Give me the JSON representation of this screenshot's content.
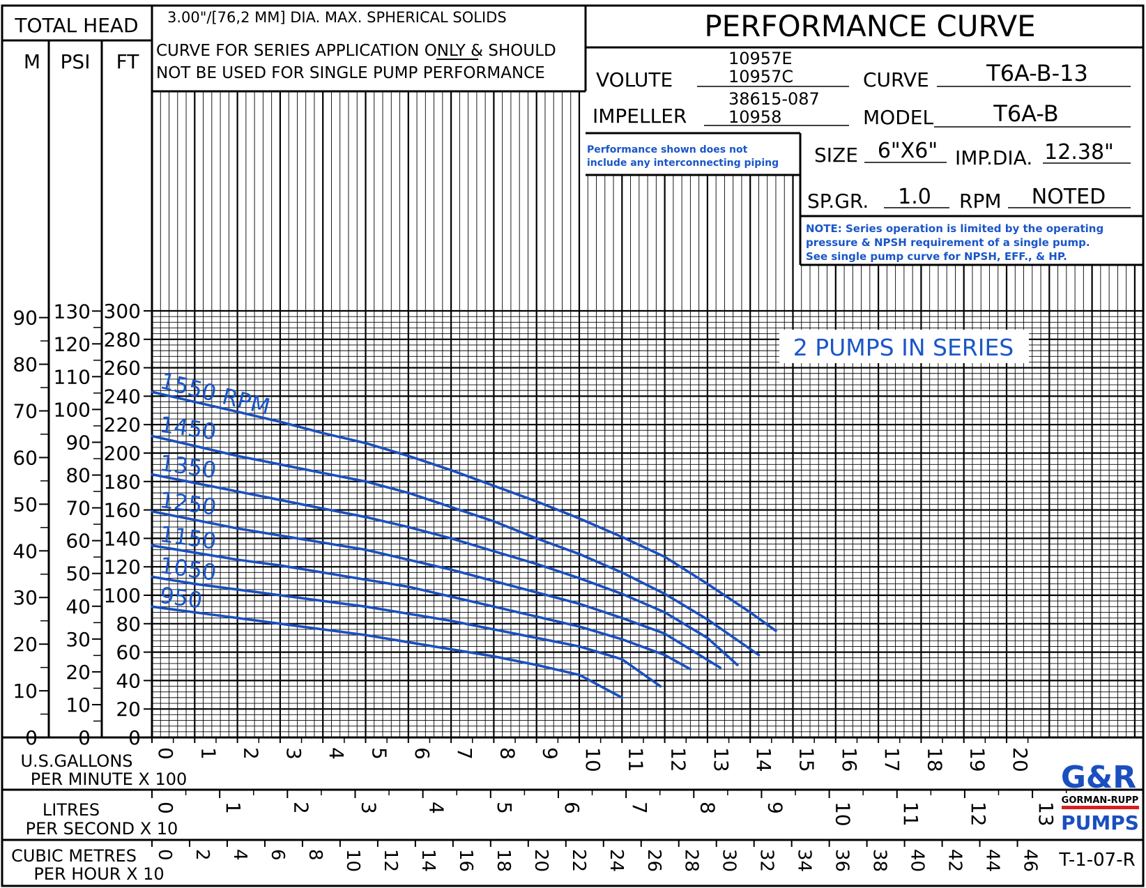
{
  "header": {
    "total_head": "TOTAL HEAD",
    "unit_m": "M",
    "unit_psi": "PSI",
    "unit_ft": "FT",
    "solids": "3.00\"/[76,2 MM] DIA. MAX. SPHERICAL SOLIDS",
    "note_line1": "CURVE FOR SERIES APPLICATION ONLY & SHOULD",
    "note_line2": "NOT BE USED FOR SINGLE PUMP PERFORMANCE",
    "title": "PERFORMANCE CURVE"
  },
  "specs": {
    "volute_label": "VOLUTE",
    "volute_1": "10957E",
    "volute_2": "10957C",
    "impeller_label": "IMPELLER",
    "impeller_1": "38615-087",
    "impeller_2": "10958",
    "curve_label": "CURVE",
    "curve_value": "T6A-B-13",
    "model_label": "MODEL",
    "model_value": "T6A-B",
    "size_label": "SIZE",
    "size_value": "6\"X6\"",
    "impdia_label": "IMP.DIA.",
    "impdia_value": "12.38\"",
    "spgr_label": "SP.GR.",
    "spgr_value": "1.0",
    "rpm_label": "RPM",
    "rpm_value": "NOTED"
  },
  "notes": {
    "piping_1": "Performance shown does not",
    "piping_2": "include any interconnecting piping",
    "series_1": "NOTE: Series operation is limited by the operating",
    "series_2": "pressure & NPSH requirement of a single pump.",
    "series_3": "See single pump curve for NPSH, EFF., & HP.",
    "series_label": "2 PUMPS IN SERIES"
  },
  "axis_labels": {
    "gpm_1": "U.S.GALLONS",
    "gpm_2": "PER MINUTE X 100",
    "lps_1": "LITRES",
    "lps_2": "PER SECOND X 10",
    "cmh_1": "CUBIC METRES",
    "cmh_2": "PER HOUR X 10"
  },
  "footer": {
    "drawing_no": "T-1-07-R",
    "logo_mark": "G&R",
    "logo_company": "GORMAN-RUPP",
    "logo_product": "PUMPS"
  },
  "chart_data": {
    "type": "line",
    "title": "PERFORMANCE CURVE",
    "x_axis": {
      "label": "U.S.GALLONS PER MINUTE X 100",
      "range": [
        0,
        23
      ],
      "ticks": [
        0,
        1,
        2,
        3,
        4,
        5,
        6,
        7,
        8,
        9,
        10,
        11,
        12,
        13,
        14,
        15,
        16,
        17,
        18,
        19,
        20
      ]
    },
    "y_axis": {
      "label": "TOTAL HEAD FT",
      "range": [
        0,
        300
      ],
      "ticks": [
        0,
        20,
        40,
        60,
        80,
        100,
        120,
        140,
        160,
        180,
        200,
        220,
        240,
        260,
        280,
        300
      ]
    },
    "secondary_y_axes": [
      {
        "label": "M",
        "ticks": [
          0,
          10,
          20,
          30,
          40,
          50,
          60,
          70,
          80,
          90
        ]
      },
      {
        "label": "PSI",
        "ticks": [
          0,
          10,
          20,
          30,
          40,
          50,
          60,
          70,
          80,
          90,
          100,
          110,
          120,
          130
        ]
      }
    ],
    "secondary_x_axes": [
      {
        "label": "LITRES PER SECOND X 10",
        "ticks": [
          0,
          1,
          2,
          3,
          4,
          5,
          6,
          7,
          8,
          9,
          10,
          11,
          12,
          13
        ]
      },
      {
        "label": "CUBIC METRES PER HOUR X 10",
        "ticks": [
          0,
          2,
          4,
          6,
          8,
          10,
          12,
          14,
          16,
          18,
          20,
          22,
          24,
          26,
          28,
          30,
          32,
          34,
          36,
          38,
          40,
          42,
          44,
          46
        ]
      }
    ],
    "grid": true,
    "series": [
      {
        "name": "1550 RPM",
        "x": [
          0,
          1,
          2,
          3,
          4,
          5,
          6,
          7,
          8,
          9,
          10,
          11,
          12,
          13,
          14,
          14.6
        ],
        "y": [
          243,
          236,
          229,
          222,
          214,
          207,
          198,
          188,
          177,
          166,
          154,
          141,
          127,
          108,
          88,
          75
        ]
      },
      {
        "name": "1450",
        "x": [
          0,
          1,
          2,
          3,
          4,
          5,
          6,
          7,
          8,
          9,
          10,
          11,
          12,
          13,
          14.2
        ],
        "y": [
          212,
          205,
          198,
          192,
          186,
          180,
          172,
          162,
          152,
          140,
          129,
          116,
          101,
          83,
          58
        ]
      },
      {
        "name": "1350",
        "x": [
          0,
          1,
          2,
          3,
          4,
          5,
          6,
          7,
          8,
          9,
          10,
          11,
          12,
          13,
          13.7
        ],
        "y": [
          185,
          179,
          173,
          167,
          161,
          155,
          148,
          140,
          131,
          122,
          112,
          101,
          88,
          70,
          51
        ]
      },
      {
        "name": "1250",
        "x": [
          0,
          1,
          2,
          3,
          4,
          5,
          6,
          7,
          8,
          9,
          10,
          11,
          12,
          13.3
        ],
        "y": [
          159,
          153,
          147,
          142,
          137,
          132,
          125,
          118,
          110,
          102,
          94,
          84,
          73,
          49
        ]
      },
      {
        "name": "1150",
        "x": [
          0,
          1,
          2,
          3,
          4,
          5,
          6,
          7,
          8,
          9,
          10,
          11,
          12,
          12.6
        ],
        "y": [
          135,
          130,
          125,
          121,
          116,
          111,
          106,
          99,
          92,
          85,
          78,
          69,
          58,
          48
        ]
      },
      {
        "name": "1050",
        "x": [
          0,
          1,
          2,
          3,
          4,
          5,
          6,
          7,
          8,
          9,
          10,
          11,
          11.9
        ],
        "y": [
          113,
          108,
          104,
          100,
          96,
          92,
          87,
          82,
          76,
          70,
          64,
          55,
          36
        ]
      },
      {
        "name": "950",
        "x": [
          0,
          1,
          2,
          3,
          4,
          5,
          6,
          7,
          8,
          9,
          10,
          11
        ],
        "y": [
          92,
          88,
          84,
          80,
          76,
          72,
          67,
          62,
          57,
          51,
          44,
          28
        ]
      }
    ]
  }
}
